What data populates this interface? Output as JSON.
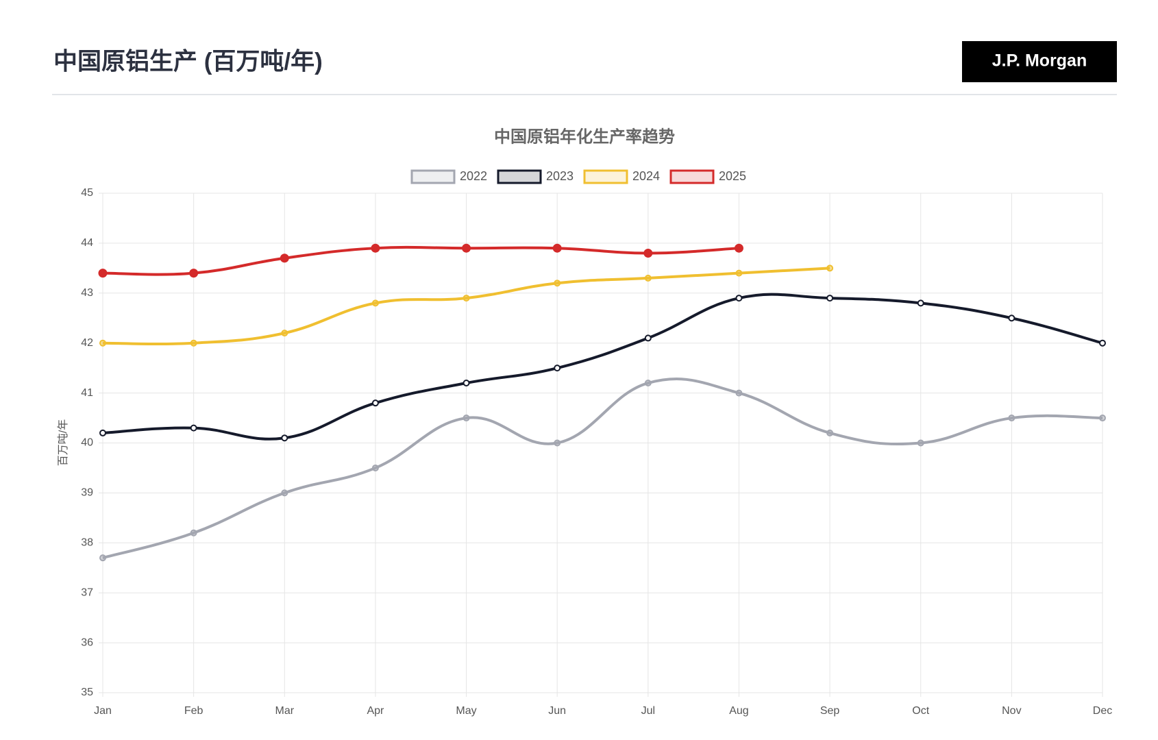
{
  "header": {
    "title": "中国原铝生产 (百万吨/年)",
    "logo": "J.P. Morgan"
  },
  "chart_data": {
    "type": "line",
    "title": "中国原铝年化生产率趋势",
    "y_label": "百万吨/年",
    "categories": [
      "Jan",
      "Feb",
      "Mar",
      "Apr",
      "May",
      "Jun",
      "Jul",
      "Aug",
      "Sep",
      "Oct",
      "Nov",
      "Dec"
    ],
    "series": [
      {
        "name": "2022",
        "color": "#a3a6b0",
        "values": [
          37.7,
          38.2,
          39.0,
          39.5,
          40.5,
          40.0,
          41.2,
          41.0,
          40.2,
          40.0,
          40.5,
          40.5
        ]
      },
      {
        "name": "2023",
        "color": "#151a2b",
        "values": [
          40.2,
          40.3,
          40.1,
          40.8,
          41.2,
          41.5,
          42.1,
          42.9,
          42.9,
          42.8,
          42.5,
          42.0
        ]
      },
      {
        "name": "2024",
        "color": "#f0bf30",
        "values": [
          42.0,
          42.0,
          42.2,
          42.8,
          42.9,
          43.2,
          43.3,
          43.4,
          43.5,
          null,
          null,
          null
        ]
      },
      {
        "name": "2025",
        "color": "#d42a2a",
        "values": [
          43.4,
          43.4,
          43.7,
          43.9,
          43.9,
          43.9,
          43.8,
          43.9,
          null,
          null,
          null,
          null
        ]
      }
    ],
    "ylim": [
      35,
      45
    ],
    "yticks": [
      35,
      36,
      37,
      38,
      39,
      40,
      41,
      42,
      43,
      44,
      45
    ],
    "grid": true
  }
}
